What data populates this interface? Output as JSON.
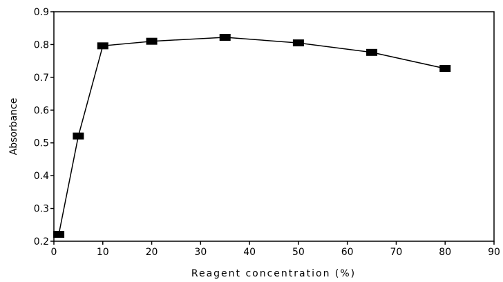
{
  "chart_data": {
    "type": "line",
    "title": "",
    "xlabel": "Reagent concentration (%)",
    "ylabel": "Absorbance",
    "xlim": [
      0,
      90
    ],
    "ylim": [
      0.2,
      0.9
    ],
    "x_ticks": [
      0,
      10,
      20,
      30,
      40,
      50,
      60,
      70,
      80,
      90
    ],
    "y_ticks": [
      0.2,
      0.3,
      0.4,
      0.5,
      0.6,
      0.7,
      0.8,
      0.9
    ],
    "x_tick_labels": [
      "0",
      "10",
      "20",
      "30",
      "40",
      "50",
      "60",
      "70",
      "80",
      "90"
    ],
    "y_tick_labels": [
      "0.2",
      "0.3",
      "0.4",
      "0.5",
      "0.6",
      "0.7",
      "0.8",
      "0.9"
    ],
    "grid": false,
    "series": [
      {
        "x": [
          1,
          5,
          10,
          20,
          35,
          50,
          65,
          80
        ],
        "y": [
          0.221,
          0.521,
          0.796,
          0.81,
          0.822,
          0.805,
          0.776,
          0.727
        ],
        "marker": "square",
        "color": "#000000"
      }
    ]
  }
}
